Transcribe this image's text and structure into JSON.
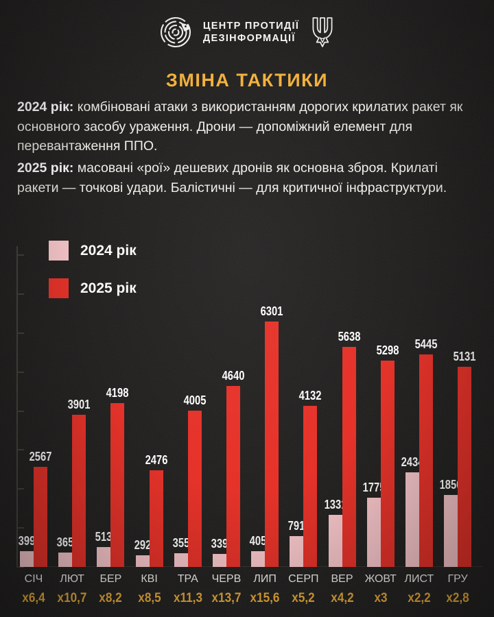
{
  "header": {
    "org_line1": "ЦЕНТР ПРОТИДІЇ",
    "org_line2": "ДЕЗІНФОРМАЦІЇ"
  },
  "title": "ЗМІНА ТАКТИКИ",
  "paragraphs": [
    {
      "lead": "2024 рік:",
      "text": " комбіновані атаки з використанням дорогих крилатих ракет як основного засобу ураження. Дрони — допоміжний елемент для перевантаження ППО."
    },
    {
      "lead": "2025 рік:",
      "text": " масовані «рої» дешевих дронів як основна зброя. Крилаті ракети — точкові удари. Балістичні — для критичної інфраструктури."
    }
  ],
  "colors": {
    "background": "#1d1c1b",
    "accent_gold": "#f2b13d",
    "pink_2024": "#f7c6ca",
    "red_2025": "#e6332a",
    "text_white": "#f2efec",
    "axis_gray": "#474540"
  },
  "chart_data": {
    "type": "bar",
    "title": "ЗМІНА ТАКТИКИ",
    "categories": [
      "СІЧ",
      "ЛЮТ",
      "БЕР",
      "КВІ",
      "ТРА",
      "ЧЕРВ",
      "ЛИП",
      "СЕРП",
      "ВЕР",
      "ЖОВТ",
      "ЛИСТ",
      "ГРУ"
    ],
    "series": [
      {
        "name": "2024 рік",
        "color": "#f7c6ca",
        "values": [
          399,
          365,
          513,
          292,
          355,
          339,
          405,
          791,
          1331,
          1775,
          2434,
          1850
        ]
      },
      {
        "name": "2025 рік",
        "color": "#e6332a",
        "values": [
          2567,
          3901,
          4198,
          2476,
          4005,
          4640,
          6301,
          4132,
          5638,
          5298,
          5445,
          5131
        ]
      }
    ],
    "multipliers": [
      "х6,4",
      "х10,7",
      "х8,2",
      "х8,5",
      "х11,3",
      "х13,7",
      "х15,6",
      "х5,2",
      "х4,2",
      "х3",
      "х2,2",
      "х2,8"
    ],
    "ylim": [
      0,
      8000
    ],
    "tick_step": 1000,
    "grid": false,
    "legend_position": "top-left",
    "value_labels": true,
    "xlabel": "",
    "ylabel": ""
  },
  "legend": {
    "items": [
      {
        "label": "2024 рік",
        "color": "#f7c6ca"
      },
      {
        "label": "2025 рік",
        "color": "#e6332a"
      }
    ]
  }
}
